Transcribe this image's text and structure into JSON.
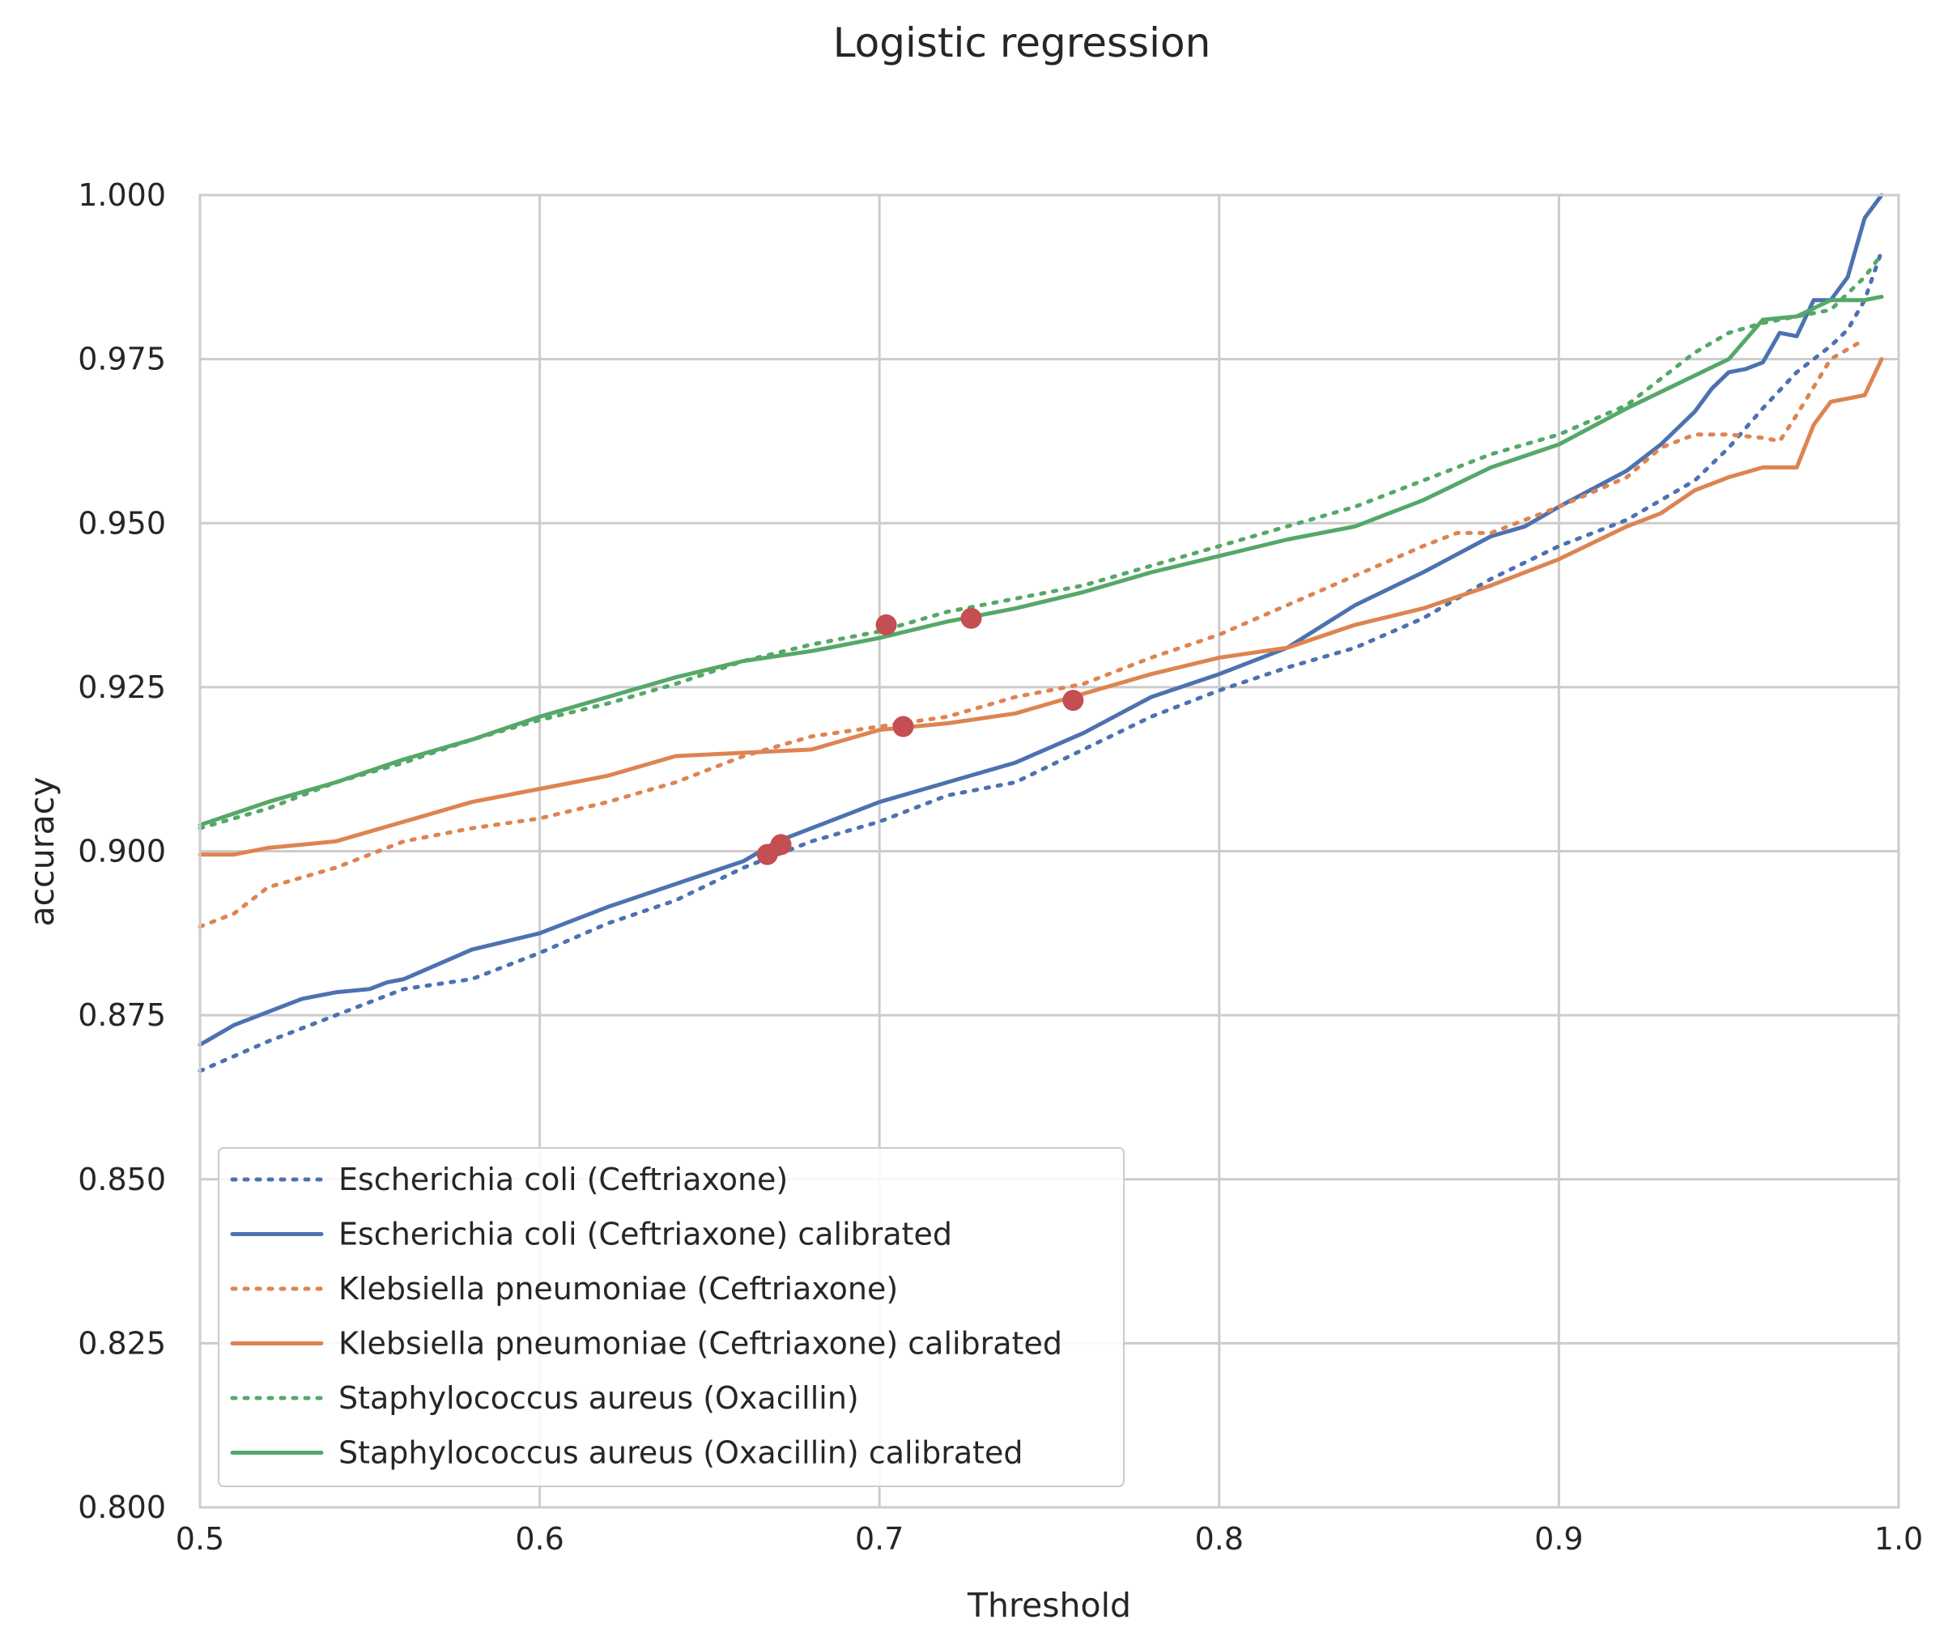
{
  "chart_data": {
    "type": "line",
    "title": "Logistic regression",
    "xlabel": "Threshold",
    "ylabel": "accuracy",
    "xlim": [
      0.5,
      1.0
    ],
    "ylim": [
      0.8,
      1.0
    ],
    "xticks": [
      "0.5",
      "0.6",
      "0.7",
      "0.8",
      "0.9",
      "1.0"
    ],
    "yticks": [
      "0.800",
      "0.825",
      "0.850",
      "0.875",
      "0.900",
      "0.925",
      "0.950",
      "0.975",
      "1.000"
    ],
    "grid": true,
    "legend_position": "lower-left",
    "colors": {
      "ecoli": "#4c72b0",
      "kleb": "#dd8452",
      "staph": "#55a868",
      "marker": "#c44e52",
      "grid": "#cccccc"
    },
    "series": [
      {
        "name": "Escherichia coli (Ceftriaxone)",
        "color": "#4c72b0",
        "style": "dotted",
        "x": [
          0.5,
          0.52,
          0.55,
          0.56,
          0.58,
          0.6,
          0.62,
          0.64,
          0.66,
          0.68,
          0.7,
          0.72,
          0.74,
          0.76,
          0.78,
          0.8,
          0.82,
          0.84,
          0.86,
          0.88,
          0.9,
          0.92,
          0.94,
          0.95,
          0.96,
          0.97,
          0.98,
          0.985,
          0.99,
          0.995
        ],
        "y": [
          0.8665,
          0.871,
          0.877,
          0.879,
          0.8805,
          0.8845,
          0.889,
          0.8925,
          0.8975,
          0.9015,
          0.9045,
          0.9085,
          0.9105,
          0.9155,
          0.9205,
          0.9245,
          0.928,
          0.931,
          0.9355,
          0.9415,
          0.9465,
          0.9505,
          0.9565,
          0.9615,
          0.9675,
          0.973,
          0.977,
          0.9795,
          0.984,
          0.9915
        ]
      },
      {
        "name": "Escherichia coli (Ceftriaxone) calibrated",
        "color": "#4c72b0",
        "style": "solid",
        "x": [
          0.5,
          0.51,
          0.52,
          0.53,
          0.54,
          0.55,
          0.555,
          0.56,
          0.58,
          0.6,
          0.62,
          0.64,
          0.66,
          0.67,
          0.68,
          0.7,
          0.72,
          0.74,
          0.76,
          0.78,
          0.8,
          0.82,
          0.84,
          0.86,
          0.88,
          0.89,
          0.9,
          0.92,
          0.93,
          0.94,
          0.945,
          0.95,
          0.955,
          0.96,
          0.965,
          0.97,
          0.975,
          0.98,
          0.985,
          0.99,
          0.995
        ],
        "y": [
          0.8705,
          0.8735,
          0.8755,
          0.8775,
          0.8785,
          0.879,
          0.88,
          0.8805,
          0.885,
          0.8875,
          0.8915,
          0.895,
          0.8985,
          0.9015,
          0.9035,
          0.9075,
          0.9105,
          0.9135,
          0.918,
          0.9235,
          0.927,
          0.931,
          0.9375,
          0.9425,
          0.948,
          0.9495,
          0.9525,
          0.958,
          0.962,
          0.967,
          0.9705,
          0.973,
          0.9735,
          0.9745,
          0.979,
          0.9785,
          0.984,
          0.984,
          0.9875,
          0.9965,
          1.0
        ]
      },
      {
        "name": "Klebsiella pneumoniae (Ceftriaxone)",
        "color": "#dd8452",
        "style": "dotted",
        "x": [
          0.5,
          0.51,
          0.52,
          0.54,
          0.56,
          0.58,
          0.6,
          0.62,
          0.64,
          0.66,
          0.68,
          0.7,
          0.72,
          0.74,
          0.76,
          0.78,
          0.8,
          0.82,
          0.84,
          0.86,
          0.87,
          0.88,
          0.9,
          0.92,
          0.93,
          0.94,
          0.95,
          0.96,
          0.965,
          0.97,
          0.98,
          0.99
        ],
        "y": [
          0.8885,
          0.8905,
          0.8945,
          0.8975,
          0.9015,
          0.9035,
          0.905,
          0.9075,
          0.9105,
          0.9145,
          0.9175,
          0.919,
          0.9205,
          0.9235,
          0.9255,
          0.9295,
          0.933,
          0.9375,
          0.942,
          0.9465,
          0.9485,
          0.9485,
          0.9525,
          0.957,
          0.9615,
          0.9635,
          0.9635,
          0.963,
          0.9625,
          0.9665,
          0.975,
          0.978
        ]
      },
      {
        "name": "Klebsiella pneumoniae (Ceftriaxone) calibrated",
        "color": "#dd8452",
        "style": "solid",
        "x": [
          0.5,
          0.51,
          0.52,
          0.53,
          0.54,
          0.56,
          0.58,
          0.6,
          0.62,
          0.64,
          0.66,
          0.68,
          0.7,
          0.72,
          0.74,
          0.76,
          0.78,
          0.8,
          0.82,
          0.84,
          0.86,
          0.88,
          0.9,
          0.92,
          0.93,
          0.94,
          0.95,
          0.96,
          0.97,
          0.975,
          0.98,
          0.985,
          0.99,
          0.995
        ],
        "y": [
          0.8995,
          0.8995,
          0.9005,
          0.901,
          0.9015,
          0.9045,
          0.9075,
          0.9095,
          0.9115,
          0.9145,
          0.915,
          0.9155,
          0.9185,
          0.9195,
          0.921,
          0.924,
          0.927,
          0.9295,
          0.931,
          0.9345,
          0.937,
          0.9405,
          0.9445,
          0.9495,
          0.9515,
          0.955,
          0.957,
          0.9585,
          0.9585,
          0.965,
          0.9685,
          0.969,
          0.9695,
          0.975
        ]
      },
      {
        "name": "Staphylococcus aureus (Oxacillin)",
        "color": "#55a868",
        "style": "dotted",
        "x": [
          0.5,
          0.52,
          0.54,
          0.56,
          0.58,
          0.6,
          0.62,
          0.64,
          0.66,
          0.68,
          0.7,
          0.72,
          0.74,
          0.76,
          0.78,
          0.8,
          0.82,
          0.84,
          0.86,
          0.88,
          0.9,
          0.92,
          0.94,
          0.95,
          0.96,
          0.97,
          0.98,
          0.99,
          0.995
        ],
        "y": [
          0.9035,
          0.9065,
          0.9105,
          0.9135,
          0.917,
          0.92,
          0.9225,
          0.9255,
          0.929,
          0.9315,
          0.9335,
          0.9365,
          0.9385,
          0.9405,
          0.9435,
          0.9465,
          0.9495,
          0.9525,
          0.9565,
          0.9605,
          0.9635,
          0.968,
          0.976,
          0.979,
          0.9805,
          0.9815,
          0.9825,
          0.9875,
          0.991
        ]
      },
      {
        "name": "Staphylococcus aureus (Oxacillin) calibrated",
        "color": "#55a868",
        "style": "solid",
        "x": [
          0.5,
          0.52,
          0.54,
          0.56,
          0.58,
          0.6,
          0.62,
          0.64,
          0.66,
          0.68,
          0.7,
          0.72,
          0.74,
          0.76,
          0.78,
          0.8,
          0.82,
          0.84,
          0.86,
          0.88,
          0.9,
          0.92,
          0.94,
          0.95,
          0.96,
          0.97,
          0.98,
          0.99,
          0.995
        ],
        "y": [
          0.904,
          0.9075,
          0.9105,
          0.914,
          0.917,
          0.9205,
          0.9235,
          0.9265,
          0.929,
          0.9305,
          0.9325,
          0.935,
          0.937,
          0.9395,
          0.9425,
          0.945,
          0.9475,
          0.9495,
          0.9535,
          0.9585,
          0.962,
          0.9675,
          0.9725,
          0.975,
          0.981,
          0.9815,
          0.984,
          0.984,
          0.9845
        ]
      }
    ],
    "markers": [
      {
        "x": 0.667,
        "y": 0.8995
      },
      {
        "x": 0.671,
        "y": 0.901
      },
      {
        "x": 0.702,
        "y": 0.9345
      },
      {
        "x": 0.707,
        "y": 0.919
      },
      {
        "x": 0.727,
        "y": 0.9355
      },
      {
        "x": 0.757,
        "y": 0.923
      }
    ]
  }
}
